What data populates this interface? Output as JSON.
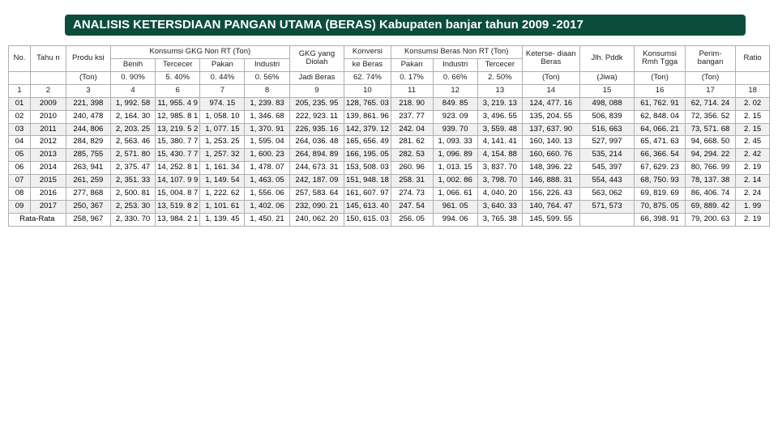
{
  "title": "ANALISIS KETERSDIAAN PANGAN UTAMA (BERAS) Kabupaten banjar tahun 2009 -2017",
  "header": {
    "no": "No.",
    "tahun": "Tahu\nn",
    "produksi": "Produ\nksi",
    "kgk_group": "Konsumsi GKG Non RT (Ton)",
    "benih": "Benih",
    "tercecer": "Tercecer",
    "pakan": "Pakan",
    "industri": "Industri",
    "gkg_diolah": "GKG yang\nDiolah",
    "konversi": "Konversi",
    "ke_beras": "ke Beras",
    "kbnrt_group": "Konsumsi Beras Non RT\n(Ton)",
    "b_pakan": "Pakan",
    "b_industri": "Industri",
    "b_tercecer": "Tercecer",
    "ketersediaan": "Keterse-\ndiaan\nBeras",
    "jlh_pddk": "Jlh.\nPddk",
    "kons_rmh": "Konsumsi\nRmh\nTgga",
    "perimbangan": "Perim-\nbangan",
    "ratio": "Ratio"
  },
  "subrow": {
    "produksi": "(Ton)",
    "benih": "0. 90%",
    "tercecer": "5. 40%",
    "pakan": "0. 44%",
    "industri": "0. 56%",
    "gkg_diolah": "Jadi Beras",
    "ke_beras": "62. 74%",
    "b_pakan": "0. 17%",
    "b_industri": "0. 66%",
    "b_tercecer": "2. 50%",
    "ketersediaan": "(Ton)",
    "jlh_pddk": "(Jiwa)",
    "kons_rmh": "(Ton)",
    "perimbangan": "(Ton)"
  },
  "colnums": [
    "1",
    "2",
    "3",
    "4",
    "6",
    "7",
    "8",
    "9",
    "10",
    "11",
    "12",
    "13",
    "14",
    "15",
    "16",
    "17",
    "18"
  ],
  "rows": [
    {
      "no": "01",
      "tahun": "2009",
      "c": [
        "221, 398",
        "1, 992. 58",
        "11, 955. 4\n9",
        "974. 15",
        "1, 239. 83",
        "205, 235. 95",
        "128, 765. 03",
        "218. 90",
        "849. 85",
        "3, 219. 13",
        "124, 477. 16",
        "498, 088",
        "61, 762. 91",
        "62, 714. 24",
        "2. 02"
      ]
    },
    {
      "no": "02",
      "tahun": "2010",
      "c": [
        "240, 478",
        "2, 164. 30",
        "12, 985. 8\n1",
        "1, 058. 10",
        "1, 346. 68",
        "222, 923. 11",
        "139, 861. 96",
        "237. 77",
        "923. 09",
        "3, 496. 55",
        "135, 204. 55",
        "506, 839",
        "62, 848. 04",
        "72, 356. 52",
        "2. 15"
      ]
    },
    {
      "no": "03",
      "tahun": "2011",
      "c": [
        "244, 806",
        "2, 203. 25",
        "13, 219. 5\n2",
        "1, 077. 15",
        "1, 370. 91",
        "226, 935. 16",
        "142, 379. 12",
        "242. 04",
        "939. 70",
        "3, 559. 48",
        "137, 637. 90",
        "516, 663",
        "64, 066. 21",
        "73, 571. 68",
        "2. 15"
      ]
    },
    {
      "no": "04",
      "tahun": "2012",
      "c": [
        "284, 829",
        "2, 563. 46",
        "15, 380. 7\n7",
        "1, 253. 25",
        "1, 595. 04",
        "264, 036. 48",
        "165, 656. 49",
        "281. 62",
        "1, 093. 33",
        "4, 141. 41",
        "160, 140. 13",
        "527, 997",
        "65, 471. 63",
        "94, 668. 50",
        "2. 45"
      ]
    },
    {
      "no": "05",
      "tahun": "2013",
      "c": [
        "285, 755",
        "2, 571. 80",
        "15, 430. 7\n7",
        "1, 257. 32",
        "1, 600. 23",
        "264, 894. 89",
        "166, 195. 05",
        "282. 53",
        "1, 096. 89",
        "4, 154. 88",
        "160, 660. 76",
        "535, 214",
        "66, 366. 54",
        "94, 294. 22",
        "2. 42"
      ]
    },
    {
      "no": "06",
      "tahun": "2014",
      "c": [
        "263, 941",
        "2, 375. 47",
        "14, 252. 8\n1",
        "1, 161. 34",
        "1, 478. 07",
        "244, 673. 31",
        "153, 508. 03",
        "260. 96",
        "1, 013. 15",
        "3, 837. 70",
        "148, 396. 22",
        "545, 397",
        "67, 629. 23",
        "80, 766. 99",
        "2. 19"
      ]
    },
    {
      "no": "07",
      "tahun": "2015",
      "c": [
        "261, 259",
        "2, 351. 33",
        "14, 107. 9\n9",
        "1, 149. 54",
        "1, 463. 05",
        "242, 187. 09",
        "151, 948. 18",
        "258. 31",
        "1, 002. 86",
        "3, 798. 70",
        "146, 888. 31",
        "554, 443",
        "68, 750. 93",
        "78, 137. 38",
        "2. 14"
      ]
    },
    {
      "no": "08",
      "tahun": "2016",
      "c": [
        "277, 868",
        "2, 500. 81",
        "15, 004. 8\n7",
        "1, 222. 62",
        "1, 556. 06",
        "257, 583. 64",
        "161, 607. 97",
        "274. 73",
        "1, 066. 61",
        "4, 040. 20",
        "156, 226. 43",
        "563, 062",
        "69, 819. 69",
        "86, 406. 74",
        "2. 24"
      ]
    },
    {
      "no": "09",
      "tahun": "2017",
      "c": [
        "250, 367",
        "2, 253. 30",
        "13, 519. 8\n2",
        "1, 101. 61",
        "1, 402. 06",
        "232, 090. 21",
        "145, 613. 40",
        "247. 54",
        "961. 05",
        "3, 640. 33",
        "140, 764. 47",
        "571, 573",
        "70, 875. 05",
        "69, 889. 42",
        "1. 99"
      ]
    }
  ],
  "avg_row": {
    "label": "Rata-Rata",
    "c": [
      "258, 967",
      "2, 330. 70",
      "13, 984. 2\n1",
      "1, 139. 45",
      "1, 450. 21",
      "240, 062. 20",
      "150, 615. 03",
      "256. 05",
      "994. 06",
      "3, 765. 38",
      "145, 599. 55",
      "",
      "66, 398. 91",
      "79, 200. 63",
      "2. 19"
    ]
  }
}
